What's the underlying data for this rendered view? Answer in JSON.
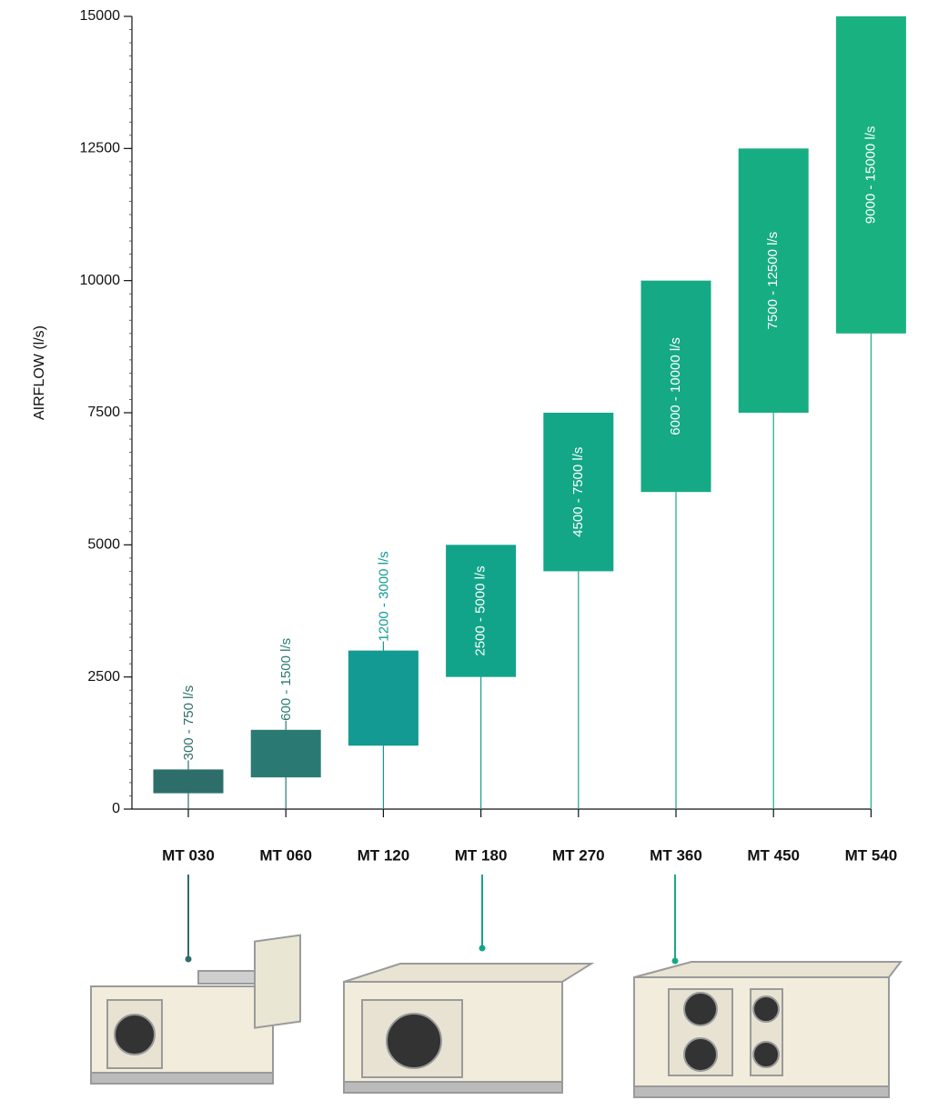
{
  "chart_data": {
    "type": "floating_bar",
    "y_axis_label": "AIRFLOW (l/s)",
    "categories": [
      "MT 030",
      "MT 060",
      "MT 120",
      "MT 180",
      "MT 270",
      "MT 360",
      "MT 450",
      "MT 540"
    ],
    "low": [
      300,
      600,
      1200,
      2500,
      4500,
      6000,
      7500,
      9000
    ],
    "high": [
      750,
      1500,
      3000,
      5000,
      7500,
      10000,
      12500,
      15000
    ],
    "range_labels": [
      "300 - 750 l/s",
      "600 - 1500 l/s",
      "1200 - 3000 l/s",
      "2500 - 5000 l/s",
      "4500 - 7500 l/s",
      "6000 - 10000 l/s",
      "7500 - 12500 l/s",
      "9000 - 15000 l/s"
    ],
    "colors": [
      "#2d6e6a",
      "#2a7a73",
      "#139a92",
      "#12a48a",
      "#13a788",
      "#15aa85",
      "#17ad82",
      "#19b180"
    ],
    "ylim": [
      0,
      15000
    ],
    "yticks": [
      0,
      2500,
      5000,
      7500,
      10000,
      12500,
      15000
    ]
  }
}
